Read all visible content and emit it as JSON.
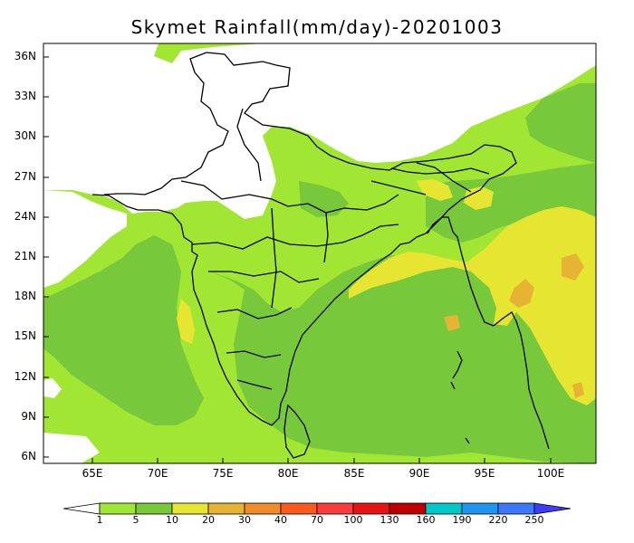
{
  "title": "Skymet Rainfall(mm/day)-20201003",
  "lat_labels": [
    "36N",
    "33N",
    "30N",
    "27N",
    "24N",
    "21N",
    "18N",
    "15N",
    "12N",
    "9N",
    "6N"
  ],
  "lon_labels": [
    "65E",
    "70E",
    "75E",
    "80E",
    "85E",
    "90E",
    "95E",
    "100E"
  ],
  "lat_values": [
    36,
    33,
    30,
    27,
    24,
    21,
    18,
    15,
    12,
    9,
    6
  ],
  "lon_values": [
    65,
    70,
    75,
    80,
    85,
    90,
    95,
    100
  ],
  "legend": {
    "labels": [
      "1",
      "5",
      "10",
      "20",
      "30",
      "40",
      "70",
      "100",
      "130",
      "160",
      "190",
      "220",
      "250"
    ],
    "colors": [
      "#ffffff",
      "#a0e632",
      "#78c83c",
      "#e6e632",
      "#e6b432",
      "#f08c28",
      "#fa5a1e",
      "#fa3c3c",
      "#e61414",
      "#be0000",
      "#00c8c8",
      "#1e96f0",
      "#3c78fa",
      "#3c3cfa"
    ]
  }
}
